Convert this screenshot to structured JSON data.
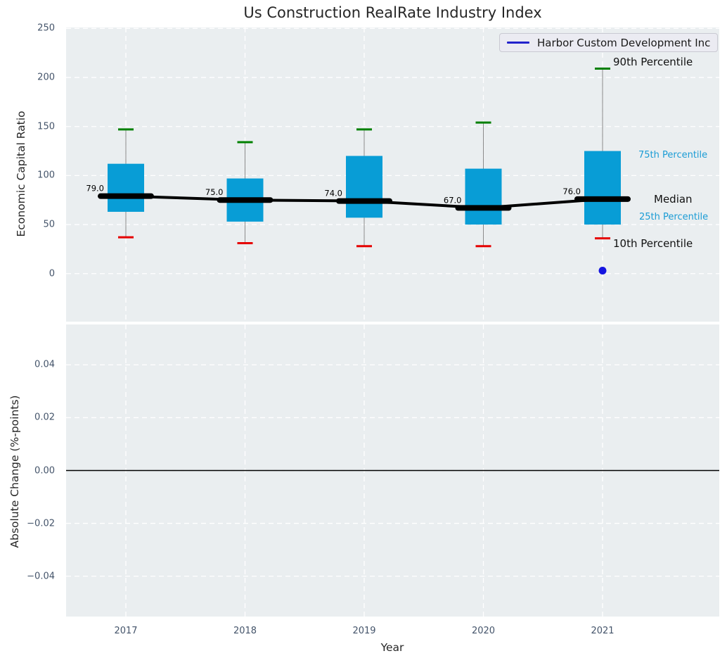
{
  "figure": {
    "title": "Us Construction RealRate Industry Index"
  },
  "legend": {
    "label": "Harbor Custom Development Inc"
  },
  "axes": {
    "top": {
      "ylabel": "Economic Capital Ratio",
      "ytick_labels": [
        "0",
        "50",
        "100",
        "150",
        "200",
        "250"
      ]
    },
    "bottom": {
      "ylabel": "Absolute Change (%-points)",
      "xlabel": "Year",
      "ytick_labels": [
        "−0.04",
        "−0.02",
        "0.00",
        "0.02",
        "0.04"
      ],
      "xtick_labels": [
        "2017",
        "2018",
        "2019",
        "2020",
        "2021"
      ]
    }
  },
  "annotations": {
    "p90": "90th Percentile",
    "p75": "75th Percentile",
    "median": "Median",
    "p25": "25th Percentile",
    "p10": "10th Percentile"
  },
  "colors": {
    "panel_bg": "#eaeef0",
    "grid": "#ffffff",
    "box_fill": "#089dd6",
    "whisker": "#8a8a8a",
    "cap_90": "#008000",
    "cap_10": "#e50000",
    "median_line": "#000000",
    "company_point": "#1414e0",
    "legend_line": "#2222cc",
    "percentile_text": "#1b9cd5",
    "tick_text": "#44546a",
    "zero_line": "#000000"
  },
  "chart_data": [
    {
      "type": "boxplot",
      "title": "Us Construction RealRate Industry Index",
      "xlabel": "Year",
      "ylabel": "Economic Capital Ratio",
      "categories": [
        2017,
        2018,
        2019,
        2020,
        2021
      ],
      "ylim": [
        -49,
        251
      ],
      "yticks": [
        0,
        50,
        100,
        150,
        200,
        250
      ],
      "grid": true,
      "legend_position": "upper right",
      "series": [
        {
          "name": "90th Percentile",
          "values": [
            147,
            134,
            147,
            154,
            209
          ]
        },
        {
          "name": "75th Percentile",
          "values": [
            112,
            97,
            120,
            107,
            125
          ]
        },
        {
          "name": "Median",
          "values": [
            79,
            75,
            74,
            67,
            76
          ]
        },
        {
          "name": "25th Percentile",
          "values": [
            63,
            53,
            57,
            50,
            50
          ]
        },
        {
          "name": "10th Percentile",
          "values": [
            37,
            31,
            28,
            28,
            36
          ]
        }
      ],
      "median_labels": [
        "79.0",
        "75.0",
        "74.0",
        "67.0",
        "76.0"
      ],
      "company_series": {
        "name": "Harbor Custom Development Inc",
        "points": [
          {
            "x": 2021,
            "y": 3
          }
        ]
      }
    },
    {
      "type": "line",
      "xlabel": "Year",
      "ylabel": "Absolute Change (%-points)",
      "categories": [
        2017,
        2018,
        2019,
        2020,
        2021
      ],
      "ylim": [
        -0.0553,
        0.0553
      ],
      "yticks": [
        -0.04,
        -0.02,
        0,
        0.02,
        0.04
      ],
      "zero_line": 0,
      "grid": true,
      "series": []
    }
  ]
}
